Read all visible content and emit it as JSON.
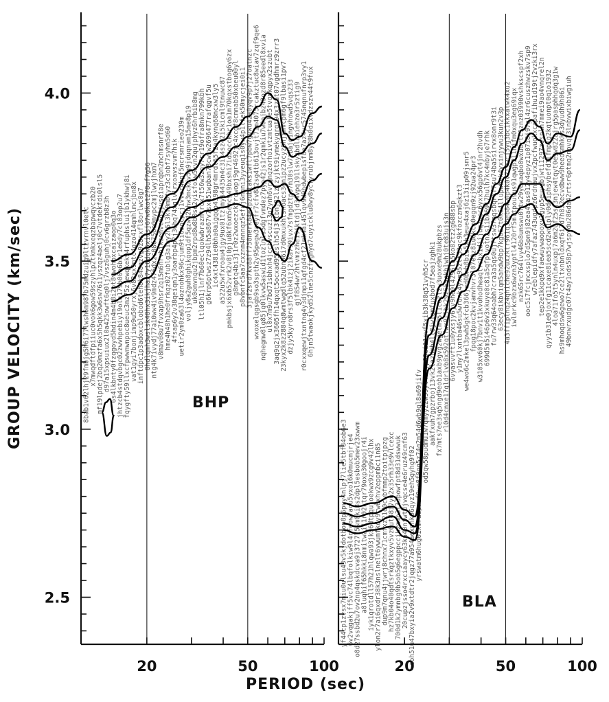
{
  "chart_data": [
    {
      "type": "line",
      "panel": "BHP",
      "ylabel": "GROUP VELOCITY (km/sec)",
      "xscale": "log",
      "xlim": [
        11,
        100
      ],
      "ylim": [
        2.36,
        4.24
      ],
      "xticks": [
        20,
        50,
        100
      ],
      "xtick_labels": [
        "20",
        "50",
        "100"
      ],
      "yticks": [
        2.5,
        3.0,
        3.5,
        4.0
      ],
      "ytick_labels": [
        "2.5",
        "3.0",
        "3.5",
        "4.0"
      ],
      "grid_x": [
        20,
        50
      ],
      "series": [
        {
          "x": [
            14.5,
            17,
            20,
            25,
            30,
            35,
            40,
            45,
            50,
            55,
            60,
            65,
            70,
            75,
            80,
            90,
            98
          ],
          "y": [
            3.5,
            3.52,
            3.58,
            3.7,
            3.77,
            3.82,
            3.86,
            3.9,
            3.93,
            3.96,
            4.0,
            3.98,
            3.88,
            3.86,
            3.87,
            3.94,
            3.96
          ]
        },
        {
          "x": [
            14.5,
            17,
            20,
            25,
            30,
            35,
            40,
            45,
            50,
            55,
            60,
            65,
            70,
            75,
            80,
            90,
            98
          ],
          "y": [
            3.46,
            3.48,
            3.54,
            3.66,
            3.74,
            3.78,
            3.81,
            3.84,
            3.87,
            3.9,
            3.93,
            3.92,
            3.84,
            3.81,
            3.82,
            3.85,
            3.88
          ]
        },
        {
          "x": [
            14.5,
            17,
            20,
            25,
            30,
            35,
            40,
            45,
            50,
            55,
            60,
            65,
            70,
            75,
            80,
            90,
            98
          ],
          "y": [
            3.42,
            3.44,
            3.5,
            3.6,
            3.66,
            3.68,
            3.69,
            3.7,
            3.71,
            3.72,
            3.74,
            3.72,
            3.73,
            3.7,
            3.68,
            3.74,
            3.76
          ]
        },
        {
          "x": [
            14.5,
            17,
            20,
            25,
            30,
            35,
            40,
            45,
            50,
            55,
            60,
            65,
            70,
            75,
            80,
            90,
            98
          ],
          "y": [
            3.38,
            3.4,
            3.45,
            3.56,
            3.63,
            3.65,
            3.66,
            3.67,
            3.66,
            3.6,
            3.56,
            3.52,
            3.5,
            3.55,
            3.6,
            3.5,
            3.48
          ]
        },
        {
          "x": [
            13.3,
            13.8,
            14.3,
            14.8,
            14.4,
            13.9,
            13.3
          ],
          "y": [
            3.05,
            3.08,
            3.09,
            3.04,
            2.99,
            2.98,
            3.05
          ]
        },
        {
          "x": [
            63,
            66,
            69,
            68,
            65,
            62,
            63
          ],
          "y": [
            3.66,
            3.68,
            3.66,
            3.63,
            3.62,
            3.64,
            3.66
          ]
        }
      ]
    },
    {
      "type": "line",
      "panel": "BLA",
      "xlabel": "PERIOD (sec)",
      "xscale": "log",
      "xlim": [
        11,
        100
      ],
      "ylim": [
        2.36,
        4.24
      ],
      "xticks": [
        20,
        50,
        100
      ],
      "xtick_labels": [
        "20",
        "50",
        "100"
      ],
      "grid_x": [
        30,
        50
      ],
      "series": [
        {
          "x": [
            11.5,
            13,
            15,
            18,
            20,
            22,
            25,
            28,
            31,
            34,
            38,
            42,
            46,
            50,
            54,
            58,
            63,
            68,
            73,
            80,
            90,
            98
          ],
          "y": [
            2.78,
            2.77,
            2.78,
            2.8,
            2.76,
            2.74,
            3.33,
            3.43,
            3.5,
            3.55,
            3.61,
            3.67,
            3.73,
            3.78,
            3.84,
            3.89,
            3.92,
            3.9,
            3.85,
            3.88,
            3.87,
            3.95
          ]
        },
        {
          "x": [
            11.5,
            13,
            15,
            18,
            20,
            22,
            25,
            28,
            31,
            34,
            38,
            42,
            46,
            50,
            54,
            58,
            63,
            68,
            73,
            80,
            90,
            98
          ],
          "y": [
            2.75,
            2.74,
            2.75,
            2.77,
            2.73,
            2.71,
            3.28,
            3.39,
            3.47,
            3.52,
            3.58,
            3.64,
            3.7,
            3.75,
            3.8,
            3.85,
            3.88,
            3.86,
            3.8,
            3.82,
            3.83,
            3.89
          ]
        },
        {
          "x": [
            11.5,
            13,
            15,
            18,
            20,
            22,
            25,
            28,
            31,
            34,
            38,
            42,
            46,
            50,
            54,
            58,
            63,
            68,
            73,
            80,
            90,
            98
          ],
          "y": [
            2.72,
            2.71,
            2.72,
            2.74,
            2.7,
            2.69,
            3.22,
            3.33,
            3.41,
            3.46,
            3.52,
            3.58,
            3.63,
            3.67,
            3.7,
            3.73,
            3.73,
            3.73,
            3.68,
            3.66,
            3.68,
            3.69
          ]
        },
        {
          "x": [
            11.5,
            13,
            15,
            18,
            20,
            22,
            25,
            28,
            31,
            34,
            38,
            42,
            46,
            50,
            54,
            58,
            63,
            68,
            73,
            80,
            90,
            98
          ],
          "y": [
            2.7,
            2.69,
            2.7,
            2.71,
            2.68,
            2.67,
            3.18,
            3.28,
            3.36,
            3.41,
            3.47,
            3.52,
            3.57,
            3.61,
            3.64,
            3.66,
            3.67,
            3.64,
            3.6,
            3.61,
            3.59,
            3.58
          ]
        }
      ]
    }
  ]
}
